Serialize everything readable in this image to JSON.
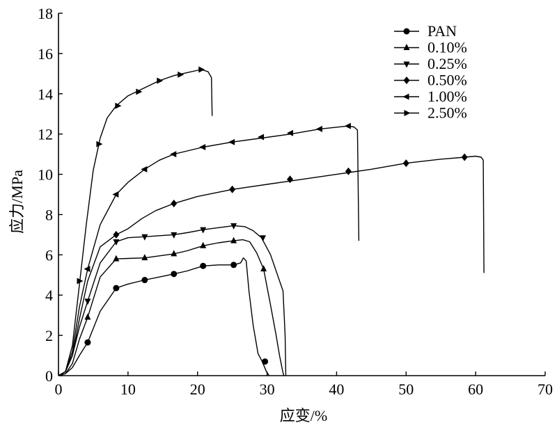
{
  "chart_data": {
    "type": "line",
    "xlabel": "应变/%",
    "ylabel": "应力/MPa",
    "xlim": [
      0,
      70
    ],
    "ylim": [
      0,
      18
    ],
    "xticks": [
      0,
      10,
      20,
      30,
      40,
      50,
      60,
      70
    ],
    "yticks": [
      0,
      2,
      4,
      6,
      8,
      10,
      12,
      14,
      16,
      18
    ],
    "grid": false,
    "legend_position": "top-right",
    "series": [
      {
        "name": "PAN",
        "marker": "circle",
        "x": [
          0,
          1,
          2,
          3,
          4.2,
          6,
          8.3,
          10,
          12.4,
          14.5,
          16.6,
          18.5,
          20.8,
          23,
          25.2,
          26.2,
          26.6,
          27,
          27.4,
          28,
          28.7,
          29.3,
          29.9,
          30.3
        ],
        "y": [
          0,
          0.1,
          0.4,
          1,
          1.65,
          3.2,
          4.35,
          4.55,
          4.75,
          4.9,
          5.05,
          5.2,
          5.45,
          5.5,
          5.5,
          5.6,
          5.85,
          5.7,
          4.2,
          2.5,
          1.1,
          0.7,
          0.2,
          0
        ],
        "marker_x": [
          4.2,
          8.3,
          12.4,
          16.6,
          20.8,
          25.2,
          29.7
        ],
        "marker_y": [
          1.65,
          4.35,
          4.75,
          5.05,
          5.45,
          5.5,
          0.7
        ]
      },
      {
        "name": "0.10%",
        "marker": "triangle-up",
        "x": [
          0,
          1,
          2,
          3,
          4.2,
          6,
          8.3,
          10,
          12.4,
          14.5,
          16.6,
          18.5,
          20.8,
          23,
          25.2,
          26.5,
          27.5,
          28.5,
          29.5,
          30.5,
          31.3,
          31.8,
          32.2,
          32.4
        ],
        "y": [
          0,
          0.1,
          0.6,
          1.8,
          2.9,
          4.9,
          5.8,
          5.82,
          5.85,
          5.95,
          6.05,
          6.2,
          6.45,
          6.6,
          6.7,
          6.75,
          6.65,
          6.1,
          5.3,
          3.5,
          2.0,
          1.0,
          0.3,
          0
        ],
        "marker_x": [
          4.2,
          8.3,
          12.4,
          16.6,
          20.8,
          25.2,
          29.5
        ],
        "marker_y": [
          2.9,
          5.8,
          5.85,
          6.05,
          6.45,
          6.7,
          5.3
        ]
      },
      {
        "name": "0.25%",
        "marker": "triangle-down",
        "x": [
          0,
          1,
          2,
          3,
          4.2,
          6,
          8.3,
          10,
          12.4,
          14.5,
          16.6,
          18.5,
          20.8,
          23,
          25.2,
          26.8,
          28,
          29.2,
          30.5,
          31.5,
          32.3,
          32.6,
          32.7
        ],
        "y": [
          0,
          0.2,
          1.0,
          2.4,
          3.7,
          5.6,
          6.65,
          6.85,
          6.9,
          6.95,
          7.0,
          7.1,
          7.25,
          7.35,
          7.45,
          7.4,
          7.2,
          6.85,
          6.0,
          5.0,
          4.2,
          2.0,
          0
        ],
        "marker_x": [
          4.2,
          8.3,
          12.4,
          16.6,
          20.8,
          25.2,
          29.4
        ],
        "marker_y": [
          3.7,
          6.65,
          6.9,
          7.0,
          7.25,
          7.45,
          6.85
        ]
      },
      {
        "name": "0.50%",
        "marker": "diamond",
        "x": [
          0,
          1,
          2,
          3,
          4.2,
          6,
          8.3,
          10,
          12,
          14,
          16.6,
          20,
          25,
          30,
          35,
          40,
          45,
          50,
          55,
          58.4,
          60,
          60.8,
          61.1,
          61.2
        ],
        "y": [
          0,
          0.2,
          1.0,
          2.8,
          4.7,
          6.4,
          7.0,
          7.3,
          7.8,
          8.2,
          8.55,
          8.9,
          9.25,
          9.5,
          9.75,
          10.0,
          10.25,
          10.55,
          10.75,
          10.85,
          10.9,
          10.85,
          10.7,
          5.1
        ],
        "marker_x": [
          8.3,
          16.6,
          25,
          33.3,
          41.7,
          50,
          58.4
        ],
        "marker_y": [
          7.0,
          8.55,
          9.25,
          9.75,
          10.15,
          10.55,
          10.85
        ]
      },
      {
        "name": "1.00%",
        "marker": "triangle-left",
        "x": [
          0,
          1,
          2,
          3,
          4.2,
          6,
          8.3,
          10,
          12.4,
          14.5,
          16.6,
          20.8,
          25,
          29.2,
          33.4,
          37.6,
          41.7,
          42.5,
          43,
          43.2
        ],
        "y": [
          0,
          0.2,
          1.2,
          3.4,
          5.3,
          7.5,
          9.0,
          9.6,
          10.25,
          10.7,
          11.0,
          11.35,
          11.6,
          11.8,
          12.0,
          12.25,
          12.4,
          12.35,
          12.2,
          6.7
        ],
        "marker_x": [
          4.2,
          8.3,
          12.4,
          16.6,
          20.8,
          25,
          29.2,
          33.4,
          37.6,
          41.7
        ],
        "marker_y": [
          5.3,
          9.0,
          10.25,
          11.0,
          11.35,
          11.6,
          11.85,
          12.05,
          12.25,
          12.4
        ]
      },
      {
        "name": "2.50%",
        "marker": "triangle-right",
        "x": [
          0,
          1,
          2,
          3,
          4,
          5,
          6,
          7,
          8.3,
          10,
          12.4,
          14.5,
          16.6,
          18.5,
          20.5,
          21.5,
          22,
          22.1
        ],
        "y": [
          0,
          0.2,
          1.5,
          4.5,
          7.5,
          10.2,
          11.8,
          12.8,
          13.4,
          13.9,
          14.3,
          14.65,
          14.9,
          15.05,
          15.2,
          15.1,
          14.8,
          12.9
        ],
        "marker_x": [
          3,
          5.8,
          8.5,
          11.5,
          14.5,
          17.5,
          20.5
        ],
        "marker_y": [
          4.7,
          11.5,
          13.4,
          14.1,
          14.65,
          14.95,
          15.2
        ]
      }
    ]
  }
}
